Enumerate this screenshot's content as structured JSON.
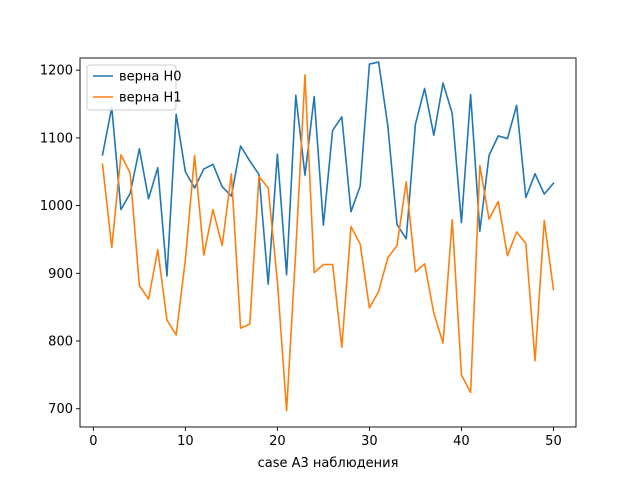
{
  "chart_data": {
    "type": "line",
    "title": "",
    "xlabel": "case A3 наблюдения",
    "ylabel": "",
    "xlim": [
      -1.45,
      52.45
    ],
    "ylim": [
      673,
      1218
    ],
    "xticks": [
      0,
      10,
      20,
      30,
      40,
      50
    ],
    "yticks": [
      700,
      800,
      900,
      1000,
      1100,
      1200
    ],
    "grid": false,
    "legend_position": "top-left",
    "x": [
      1,
      2,
      3,
      4,
      5,
      6,
      7,
      8,
      9,
      10,
      11,
      12,
      13,
      14,
      15,
      16,
      17,
      18,
      19,
      20,
      21,
      22,
      23,
      24,
      25,
      26,
      27,
      28,
      29,
      30,
      31,
      32,
      33,
      34,
      35,
      36,
      37,
      38,
      39,
      40,
      41,
      42,
      43,
      44,
      45,
      46,
      47,
      48,
      49,
      50
    ],
    "series": [
      {
        "name": "верна H0",
        "color": "#1f77b4",
        "values": [
          1075,
          1145,
          994,
          1018,
          1084,
          1010,
          1056,
          896,
          1135,
          1050,
          1026,
          1054,
          1061,
          1028,
          1014,
          1088,
          1066,
          1046,
          884,
          1076,
          898,
          1163,
          1045,
          1161,
          971,
          1111,
          1131,
          991,
          1029,
          1209,
          1212,
          1118,
          972,
          951,
          1120,
          1173,
          1104,
          1181,
          1136,
          975,
          1164,
          962,
          1074,
          1103,
          1099,
          1148,
          1012,
          1047,
          1017,
          1033
        ]
      },
      {
        "name": "верна H1",
        "color": "#ff7f0e",
        "values": [
          1061,
          938,
          1075,
          1048,
          882,
          862,
          935,
          831,
          809,
          920,
          1074,
          927,
          994,
          941,
          1047,
          819,
          825,
          1043,
          1026,
          888,
          697,
          934,
          1193,
          901,
          913,
          913,
          791,
          969,
          943,
          849,
          873,
          923,
          941,
          1035,
          902,
          914,
          841,
          797,
          979,
          750,
          724,
          1059,
          980,
          1006,
          926,
          961,
          944,
          771,
          978,
          876
        ]
      }
    ]
  }
}
